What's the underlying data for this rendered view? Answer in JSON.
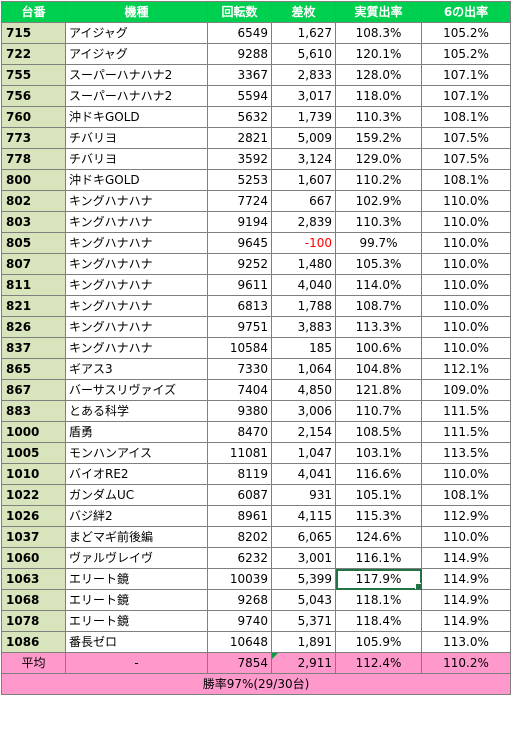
{
  "headers": [
    "台番",
    "機種",
    "回転数",
    "差枚",
    "実質出率",
    "6の出率"
  ],
  "rows": [
    {
      "no": "715",
      "name": "アイジャグ",
      "spins": "6549",
      "diff": "1,627",
      "rate": "108.3%",
      "six": "105.2%"
    },
    {
      "no": "722",
      "name": "アイジャグ",
      "spins": "9288",
      "diff": "5,610",
      "rate": "120.1%",
      "six": "105.2%"
    },
    {
      "no": "755",
      "name": "スーパーハナハナ2",
      "spins": "3367",
      "diff": "2,833",
      "rate": "128.0%",
      "six": "107.1%"
    },
    {
      "no": "756",
      "name": "スーパーハナハナ2",
      "spins": "5594",
      "diff": "3,017",
      "rate": "118.0%",
      "six": "107.1%"
    },
    {
      "no": "760",
      "name": "沖ドキGOLD",
      "spins": "5632",
      "diff": "1,739",
      "rate": "110.3%",
      "six": "108.1%"
    },
    {
      "no": "773",
      "name": "チバリヨ",
      "spins": "2821",
      "diff": "5,009",
      "rate": "159.2%",
      "six": "107.5%"
    },
    {
      "no": "778",
      "name": "チバリヨ",
      "spins": "3592",
      "diff": "3,124",
      "rate": "129.0%",
      "six": "107.5%"
    },
    {
      "no": "800",
      "name": "沖ドキGOLD",
      "spins": "5253",
      "diff": "1,607",
      "rate": "110.2%",
      "six": "108.1%"
    },
    {
      "no": "802",
      "name": "キングハナハナ",
      "spins": "7724",
      "diff": "667",
      "rate": "102.9%",
      "six": "110.0%"
    },
    {
      "no": "803",
      "name": "キングハナハナ",
      "spins": "9194",
      "diff": "2,839",
      "rate": "110.3%",
      "six": "110.0%"
    },
    {
      "no": "805",
      "name": "キングハナハナ",
      "spins": "9645",
      "diff": "-100",
      "rate": "99.7%",
      "six": "110.0%",
      "negative": true
    },
    {
      "no": "807",
      "name": "キングハナハナ",
      "spins": "9252",
      "diff": "1,480",
      "rate": "105.3%",
      "six": "110.0%"
    },
    {
      "no": "811",
      "name": "キングハナハナ",
      "spins": "9611",
      "diff": "4,040",
      "rate": "114.0%",
      "six": "110.0%"
    },
    {
      "no": "821",
      "name": "キングハナハナ",
      "spins": "6813",
      "diff": "1,788",
      "rate": "108.7%",
      "six": "110.0%"
    },
    {
      "no": "826",
      "name": "キングハナハナ",
      "spins": "9751",
      "diff": "3,883",
      "rate": "113.3%",
      "six": "110.0%"
    },
    {
      "no": "837",
      "name": "キングハナハナ",
      "spins": "10584",
      "diff": "185",
      "rate": "100.6%",
      "six": "110.0%"
    },
    {
      "no": "865",
      "name": "ギアス3",
      "spins": "7330",
      "diff": "1,064",
      "rate": "104.8%",
      "six": "112.1%"
    },
    {
      "no": "867",
      "name": "バーサスリヴァイズ",
      "spins": "7404",
      "diff": "4,850",
      "rate": "121.8%",
      "six": "109.0%"
    },
    {
      "no": "883",
      "name": "とある科学",
      "spins": "9380",
      "diff": "3,006",
      "rate": "110.7%",
      "six": "111.5%"
    },
    {
      "no": "1000",
      "name": "盾勇",
      "spins": "8470",
      "diff": "2,154",
      "rate": "108.5%",
      "six": "111.5%"
    },
    {
      "no": "1005",
      "name": "モンハンアイス",
      "spins": "11081",
      "diff": "1,047",
      "rate": "103.1%",
      "six": "113.5%"
    },
    {
      "no": "1010",
      "name": "バイオRE2",
      "spins": "8119",
      "diff": "4,041",
      "rate": "116.6%",
      "six": "110.0%"
    },
    {
      "no": "1022",
      "name": "ガンダムUC",
      "spins": "6087",
      "diff": "931",
      "rate": "105.1%",
      "six": "108.1%"
    },
    {
      "no": "1026",
      "name": "バジ絆2",
      "spins": "8961",
      "diff": "4,115",
      "rate": "115.3%",
      "six": "112.9%"
    },
    {
      "no": "1037",
      "name": "まどマギ前後編",
      "spins": "8202",
      "diff": "6,065",
      "rate": "124.6%",
      "six": "110.0%"
    },
    {
      "no": "1060",
      "name": "ヴァルヴレイヴ",
      "spins": "6232",
      "diff": "3,001",
      "rate": "116.1%",
      "six": "114.9%"
    },
    {
      "no": "1063",
      "name": "エリート鏡",
      "spins": "10039",
      "diff": "5,399",
      "rate": "117.9%",
      "six": "114.9%",
      "selected": true
    },
    {
      "no": "1068",
      "name": "エリート鏡",
      "spins": "9268",
      "diff": "5,043",
      "rate": "118.1%",
      "six": "114.9%"
    },
    {
      "no": "1078",
      "name": "エリート鏡",
      "spins": "9740",
      "diff": "5,371",
      "rate": "118.4%",
      "six": "114.9%"
    },
    {
      "no": "1086",
      "name": "番長ゼロ",
      "spins": "10648",
      "diff": "1,891",
      "rate": "105.9%",
      "six": "113.0%"
    }
  ],
  "average": {
    "label": "平均",
    "name": "-",
    "spins": "7854",
    "diff": "2,911",
    "rate": "112.4%",
    "six": "110.2%"
  },
  "win_rate": "勝率97%(29/30台)",
  "colors": {
    "header": "#00d050",
    "machine_no": "#d8e4bc",
    "summary": "#ff99cc",
    "negative": "#ff0000",
    "selection": "#217346"
  }
}
